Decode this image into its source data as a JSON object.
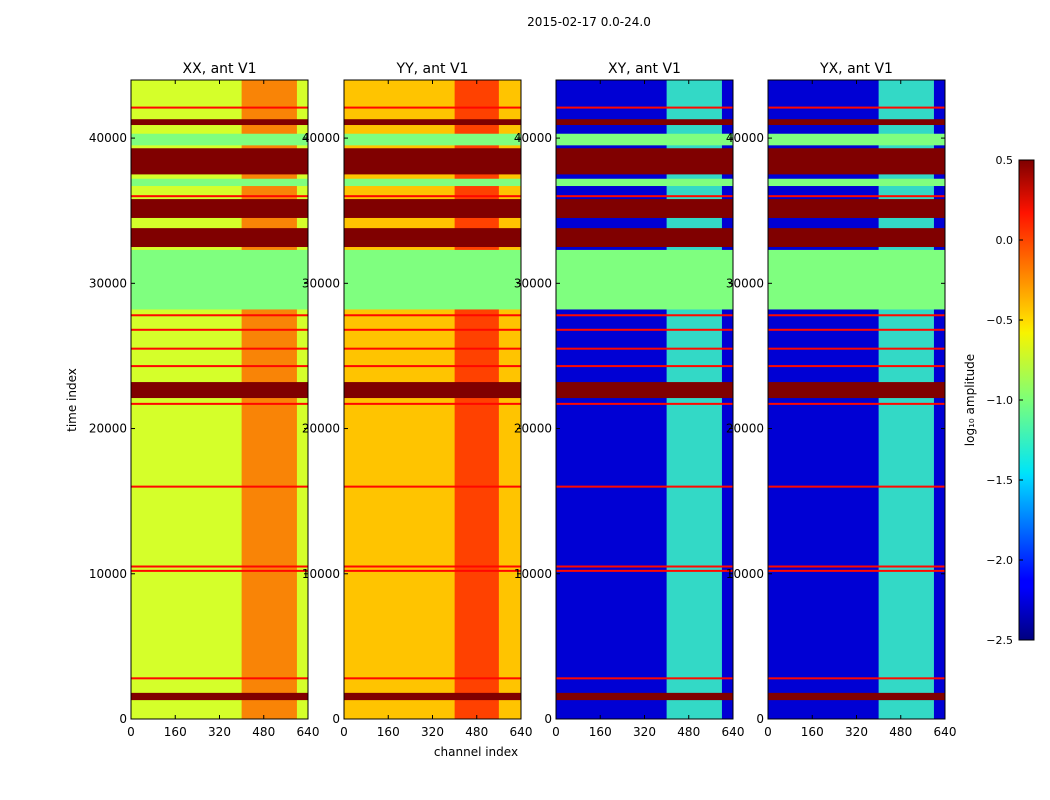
{
  "figure": {
    "suptitle": "2015-02-17 0.0-24.0",
    "xlabel": "channel index",
    "ylabel": "time index"
  },
  "chart_data": [
    {
      "type": "heatmap",
      "title": "XX, ant V1",
      "xlim": [
        0,
        640
      ],
      "ylim": [
        0,
        44000
      ],
      "xticks": [
        0,
        160,
        320,
        480,
        640
      ],
      "yticks": [
        0,
        10000,
        20000,
        30000,
        40000
      ],
      "ytick_labels": [
        "0",
        "10000",
        "20000",
        "30000",
        "40000"
      ],
      "base_log_amplitude": -0.75,
      "channel_band": [
        400,
        600
      ],
      "band_log_amplitude": -0.2
    },
    {
      "type": "heatmap",
      "title": "YY, ant V1",
      "xlim": [
        0,
        640
      ],
      "ylim": [
        0,
        44000
      ],
      "xticks": [
        0,
        160,
        320,
        480,
        640
      ],
      "yticks": [
        0,
        10000,
        20000,
        30000,
        40000
      ],
      "ytick_labels": [
        "0",
        "10000",
        "20000",
        "30000",
        "40000"
      ],
      "base_log_amplitude": -0.45,
      "channel_band": [
        400,
        560
      ],
      "band_log_amplitude": 0.0
    },
    {
      "type": "heatmap",
      "title": "XY, ant V1",
      "xlim": [
        0,
        640
      ],
      "ylim": [
        0,
        44000
      ],
      "xticks": [
        0,
        160,
        320,
        480,
        640
      ],
      "yticks": [
        0,
        10000,
        20000,
        30000,
        40000
      ],
      "ytick_labels": [
        "0",
        "10000",
        "20000",
        "30000",
        "40000"
      ],
      "base_log_amplitude": -2.25,
      "channel_band": [
        400,
        600
      ],
      "band_log_amplitude": -1.2
    },
    {
      "type": "heatmap",
      "title": "YX, ant V1",
      "xlim": [
        0,
        640
      ],
      "ylim": [
        0,
        44000
      ],
      "xticks": [
        0,
        160,
        320,
        480,
        640
      ],
      "yticks": [
        0,
        10000,
        20000,
        30000,
        40000
      ],
      "ytick_labels": [
        "0",
        "10000",
        "20000",
        "30000",
        "40000"
      ],
      "base_log_amplitude": -2.25,
      "channel_band": [
        400,
        600
      ],
      "band_log_amplitude": -1.2
    }
  ],
  "colorbar": {
    "label": "log₁₀ amplitude",
    "range": [
      -2.5,
      0.5
    ],
    "ticks": [
      0.5,
      0.0,
      -0.5,
      -1.0,
      -1.5,
      -2.0,
      -2.5
    ],
    "tick_labels": [
      "0.5",
      "0.0",
      "−0.5",
      "−1.0",
      "−1.5",
      "−2.0",
      "−2.5"
    ],
    "colormap": "jet"
  },
  "flagged_rows": {
    "flag_color": "#7fff7f",
    "flagged_time_ranges": [
      [
        28200,
        32300
      ],
      [
        39500,
        40300
      ],
      [
        36700,
        37200
      ]
    ],
    "saturated_time_ranges": [
      [
        1300,
        1800
      ],
      [
        22100,
        23200
      ],
      [
        32500,
        33800
      ],
      [
        34500,
        35800
      ],
      [
        37500,
        39300
      ],
      [
        40900,
        41300
      ]
    ],
    "hot_time_rows": [
      2800,
      10200,
      10500,
      16000,
      21700,
      24300,
      25500,
      26800,
      27800,
      36000,
      42100
    ]
  }
}
